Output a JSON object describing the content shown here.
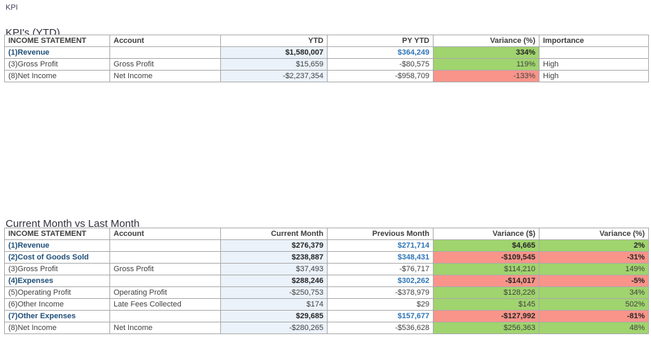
{
  "page": {
    "label": "KPI"
  },
  "colors": {
    "positive_fill": "#A0D46E",
    "negative_fill": "#F9948A",
    "value_column_fill": "#EBF2FA",
    "emphasis_row_text": "#1F4E79",
    "comparison_value_text": "#2E75B6",
    "body_text": "#404040"
  },
  "tables": [
    {
      "title": "KPI's (YTD)",
      "columns": [
        "INCOME STATEMENT",
        "Account",
        "YTD",
        "PY YTD",
        "Variance (%)",
        "Importance"
      ],
      "rows": [
        {
          "emphasis": true,
          "cells": [
            "(1)Revenue",
            "",
            "$1,580,007",
            "$364,249",
            "334%",
            ""
          ]
        },
        {
          "emphasis": false,
          "cells": [
            "(3)Gross Profit",
            "Gross Profit",
            "$15,659",
            "-$80,575",
            "119%",
            "High"
          ]
        },
        {
          "emphasis": false,
          "cells": [
            "(8)Net Income",
            "Net Income",
            "-$2,237,354",
            "-$958,709",
            "-133%",
            "High"
          ]
        }
      ]
    },
    {
      "title": "Current Month vs Last Month",
      "columns": [
        "INCOME STATEMENT",
        "Account",
        "Current Month",
        "Previous Month",
        "Variance ($)",
        "Variance (%)"
      ],
      "rows": [
        {
          "emphasis": true,
          "cells": [
            "(1)Revenue",
            "",
            "$276,379",
            "$271,714",
            "$4,665",
            "2%"
          ]
        },
        {
          "emphasis": true,
          "cells": [
            "(2)Cost of Goods Sold",
            "",
            "$238,887",
            "$348,431",
            "-$109,545",
            "-31%"
          ]
        },
        {
          "emphasis": false,
          "cells": [
            "(3)Gross Profit",
            "Gross Profit",
            "$37,493",
            "-$76,717",
            "$114,210",
            "149%"
          ]
        },
        {
          "emphasis": true,
          "cells": [
            "(4)Expenses",
            "",
            "$288,246",
            "$302,262",
            "-$14,017",
            "-5%"
          ]
        },
        {
          "emphasis": false,
          "cells": [
            "(5)Operating Profit",
            "Operating Profit",
            "-$250,753",
            "-$378,979",
            "$128,226",
            "34%"
          ]
        },
        {
          "emphasis": false,
          "cells": [
            "(6)Other Income",
            "Late Fees Collected",
            "$174",
            "$29",
            "$145",
            "502%"
          ]
        },
        {
          "emphasis": true,
          "cells": [
            "(7)Other Expenses",
            "",
            "$29,685",
            "$157,677",
            "-$127,992",
            "-81%"
          ]
        },
        {
          "emphasis": false,
          "cells": [
            "(8)Net Income",
            "Net Income",
            "-$280,265",
            "-$536,628",
            "$256,363",
            "48%"
          ]
        }
      ]
    }
  ]
}
